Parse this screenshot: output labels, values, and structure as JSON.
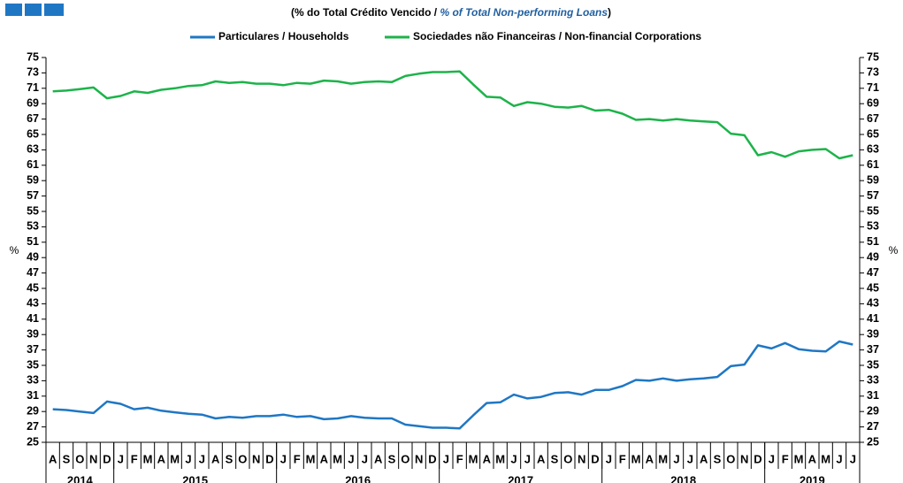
{
  "chart_data": {
    "type": "line",
    "title": [
      "(% do Total Crédito Vencido /",
      "% of Total Non-performing Loans",
      ")"
    ],
    "y_label": "%",
    "y2_label": "%",
    "categories": [
      "A",
      "S",
      "O",
      "N",
      "D",
      "J",
      "F",
      "M",
      "A",
      "M",
      "J",
      "J",
      "A",
      "S",
      "O",
      "N",
      "D",
      "J",
      "F",
      "M",
      "A",
      "M",
      "J",
      "J",
      "A",
      "S",
      "O",
      "N",
      "D",
      "J",
      "F",
      "M",
      "A",
      "M",
      "J",
      "J",
      "A",
      "S",
      "O",
      "N",
      "D",
      "J",
      "F",
      "M",
      "A",
      "M",
      "J",
      "J",
      "A",
      "S",
      "O",
      "N",
      "D",
      "J",
      "F",
      "M",
      "A",
      "M",
      "J",
      "J"
    ],
    "years": [
      "2014",
      "2015",
      "2016",
      "2017",
      "2018",
      "2019"
    ],
    "series": [
      {
        "name": "Particulares / Households",
        "color": "#1f77c4",
        "values": [
          29.3,
          29.2,
          29.0,
          28.8,
          30.3,
          30.0,
          29.3,
          29.5,
          29.1,
          28.9,
          28.7,
          28.6,
          28.1,
          28.3,
          28.2,
          28.4,
          28.4,
          28.6,
          28.3,
          28.4,
          28.0,
          28.1,
          28.4,
          28.2,
          28.1,
          28.1,
          27.3,
          27.1,
          26.9,
          26.9,
          26.8,
          28.5,
          30.1,
          30.2,
          31.2,
          30.7,
          30.9,
          31.4,
          31.5,
          31.2,
          31.8,
          31.8,
          32.3,
          33.1,
          33.0,
          33.3,
          33.0,
          33.2,
          33.3,
          33.5,
          34.9,
          35.1,
          37.6,
          37.2,
          37.9,
          37.1,
          36.9,
          36.8,
          38.1,
          37.7
        ]
      },
      {
        "name": "Sociedades não Financeiras / Non-financial Corporations",
        "color": "#1db34a",
        "values": [
          70.6,
          70.7,
          70.9,
          71.1,
          69.7,
          70.0,
          70.6,
          70.4,
          70.8,
          71.0,
          71.3,
          71.4,
          71.9,
          71.7,
          71.8,
          71.6,
          71.6,
          71.4,
          71.7,
          71.6,
          72.0,
          71.9,
          71.6,
          71.8,
          71.9,
          71.8,
          72.6,
          72.9,
          73.1,
          73.1,
          73.2,
          71.5,
          69.9,
          69.8,
          68.7,
          69.2,
          69.0,
          68.6,
          68.5,
          68.7,
          68.1,
          68.2,
          67.7,
          66.9,
          67.0,
          66.8,
          67.0,
          66.8,
          66.7,
          66.6,
          65.1,
          64.9,
          62.3,
          62.7,
          62.1,
          62.8,
          63.0,
          63.1,
          61.9,
          62.3
        ]
      }
    ],
    "ylim": [
      25,
      75
    ],
    "yticks": [
      25,
      27,
      29,
      31,
      33,
      35,
      37,
      39,
      41,
      43,
      45,
      47,
      49,
      51,
      53,
      55,
      57,
      59,
      61,
      63,
      65,
      67,
      69,
      71,
      73,
      75
    ],
    "y2lim": [
      25,
      75
    ],
    "y2ticks": [
      25,
      27,
      29,
      31,
      33,
      35,
      37,
      39,
      41,
      43,
      45,
      47,
      49,
      51,
      53,
      55,
      57,
      59,
      61,
      63,
      65,
      67,
      69,
      71,
      73,
      75
    ],
    "grid": false
  }
}
